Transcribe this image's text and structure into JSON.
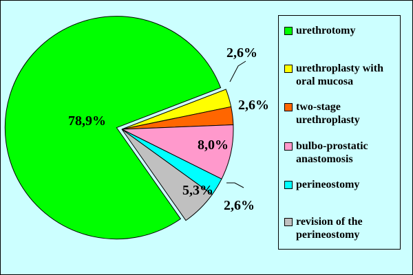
{
  "chart_data": {
    "type": "pie",
    "categories": [
      "urethrotomy",
      "urethroplasty with oral mucosa",
      "two-stage urethroplasty",
      "bulbo-prostatic anastomosis",
      "perineostomy",
      "revision of the perineostomy"
    ],
    "values": [
      78.9,
      2.6,
      2.6,
      8.0,
      2.6,
      5.3
    ],
    "data_labels": [
      "78,9%",
      "2,6%",
      "2,6%",
      "8,0%",
      "2,6%",
      "5,3%"
    ],
    "colors": [
      "#00ff00",
      "#ffff00",
      "#ff6600",
      "#ff99cc",
      "#00ffff",
      "#c0c0c0"
    ],
    "exploded": [
      true,
      false,
      false,
      false,
      false,
      false
    ],
    "legend_position": "right",
    "background": "#ccffff"
  }
}
